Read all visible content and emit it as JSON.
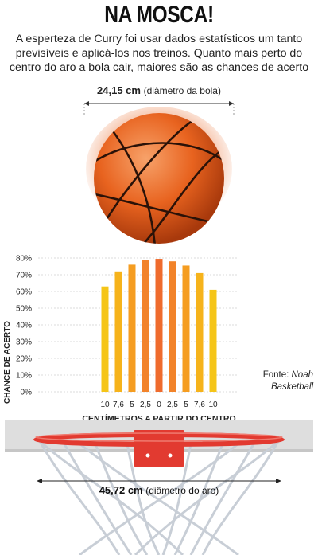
{
  "headline": "NA MOSCA!",
  "intro": "A esperteza de Curry foi usar dados estatísticos um tanto previsíveis e aplicá-los nos treinos. Quanto mais perto do centro do aro a bola cair, maiores são as chances de acerto",
  "ball_dimension": {
    "value": "24,15 cm",
    "label": "(diâmetro da bola)"
  },
  "rim_dimension": {
    "value": "45,72 cm",
    "label": "(diâmetro do aro)"
  },
  "source": {
    "prefix": "Fonte: ",
    "name": "Noah",
    "name2": "Basketball"
  },
  "chart_data": {
    "type": "bar",
    "categories": [
      "10",
      "7,6",
      "5",
      "2,5",
      "0",
      "2,5",
      "5",
      "7,6",
      "10"
    ],
    "values": [
      63,
      72,
      76,
      79,
      79.5,
      78,
      75.5,
      71,
      61
    ],
    "xlabel": "CENTÍMETROS A PARTIR DO CENTRO",
    "ylabel": "CHANCE DE ACERTO",
    "ylim": [
      0,
      80
    ],
    "yticks": [
      "0%",
      "10%",
      "20%",
      "30%",
      "40%",
      "50%",
      "60%",
      "70%",
      "80%"
    ],
    "grid": true,
    "bar_colors": [
      "#f5c518",
      "#f6b31b",
      "#f59d21",
      "#f2832a",
      "#ef6b2d",
      "#f2832a",
      "#f59d21",
      "#f6b31b",
      "#f5c518"
    ]
  },
  "colors": {
    "ball": "#e8631f",
    "rim": "#e23a30",
    "backboard": "#d9d9d9",
    "gridline": "#cfcfcf"
  }
}
